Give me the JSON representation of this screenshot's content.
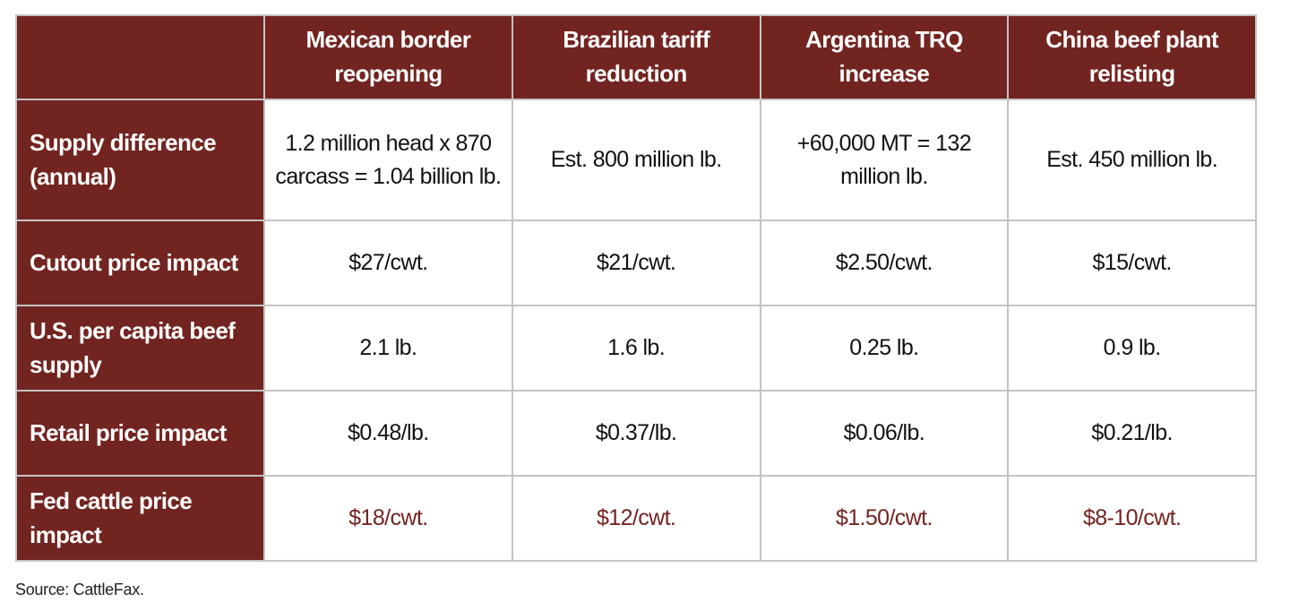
{
  "table": {
    "header": [
      "",
      "Mexican border reopening",
      "Brazilian tariff reduction",
      "Argentina TRQ increase",
      "China beef plant relisting"
    ],
    "rows": [
      {
        "label": "Supply difference (annual)",
        "values": [
          "1.2 million head x 870 carcass = 1.04 billion lb.",
          "Est. 800 million lb.",
          "+60,000 MT = 132 million lb.",
          "Est. 450 million lb."
        ]
      },
      {
        "label": "Cutout price impact",
        "values": [
          "$27/cwt.",
          "$21/cwt.",
          "$2.50/cwt.",
          "$15/cwt."
        ]
      },
      {
        "label": "U.S. per capita beef supply",
        "values": [
          "2.1 lb.",
          "1.6 lb.",
          "0.25 lb.",
          "0.9 lb."
        ]
      },
      {
        "label": "Retail price impact",
        "values": [
          "$0.48/lb.",
          "$0.37/lb.",
          "$0.06/lb.",
          "$0.21/lb."
        ]
      },
      {
        "label": "Fed cattle price impact",
        "values": [
          "$18/cwt.",
          "$12/cwt.",
          "$1.50/cwt.",
          "$8-10/cwt."
        ]
      }
    ]
  },
  "source": "Source: CattleFax.",
  "colors": {
    "header_bg": "#722420",
    "highlight_text": "#722420",
    "border": "#c4c4c4"
  }
}
